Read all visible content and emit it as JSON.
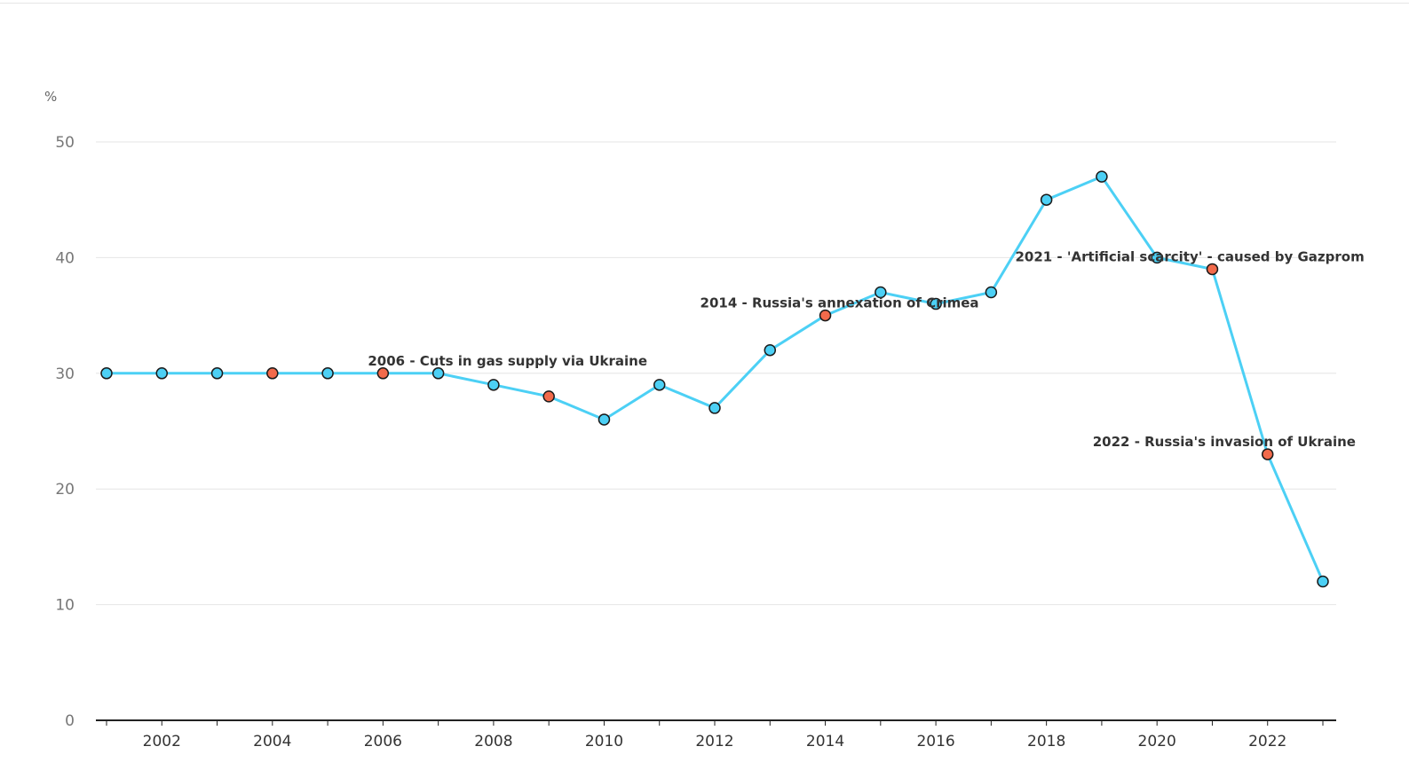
{
  "chart_data": {
    "type": "line",
    "ylabel": "%",
    "ylim": [
      0,
      50
    ],
    "yticks": [
      0,
      10,
      20,
      30,
      40,
      50
    ],
    "xlim": [
      2001,
      2023
    ],
    "xticks": [
      2002,
      2004,
      2006,
      2008,
      2010,
      2012,
      2014,
      2016,
      2018,
      2020,
      2022
    ],
    "grid": true,
    "line_color": "#4cd0f5",
    "point_color": "#4cd0f5",
    "highlight_color": "#f26a4b",
    "series": [
      {
        "x": [
          2001,
          2002,
          2003,
          2004,
          2005,
          2006,
          2007,
          2008,
          2009,
          2010,
          2011,
          2012,
          2013,
          2014,
          2015,
          2016,
          2017,
          2018,
          2019,
          2020,
          2021,
          2022,
          2023
        ],
        "values": [
          30,
          30,
          30,
          30,
          30,
          30,
          30,
          29,
          28,
          26,
          29,
          27,
          32,
          35,
          37,
          36,
          37,
          45,
          47,
          40,
          39,
          23,
          12
        ]
      }
    ],
    "highlighted_years": [
      2004,
      2006,
      2009,
      2014,
      2021,
      2022
    ],
    "annotations": [
      {
        "text": "2006 - Cuts in gas supply via Ukraine",
        "x": 2006,
        "y": 30
      },
      {
        "text": "2014 - Russia's annexation of Crimea",
        "x": 2014,
        "y": 35
      },
      {
        "text": "2021 - 'Artificial scarcity' - caused by Gazprom",
        "x": 2021,
        "y": 39
      },
      {
        "text": "2022 - Russia's invasion of Ukraine",
        "x": 2022,
        "y": 23
      }
    ]
  }
}
